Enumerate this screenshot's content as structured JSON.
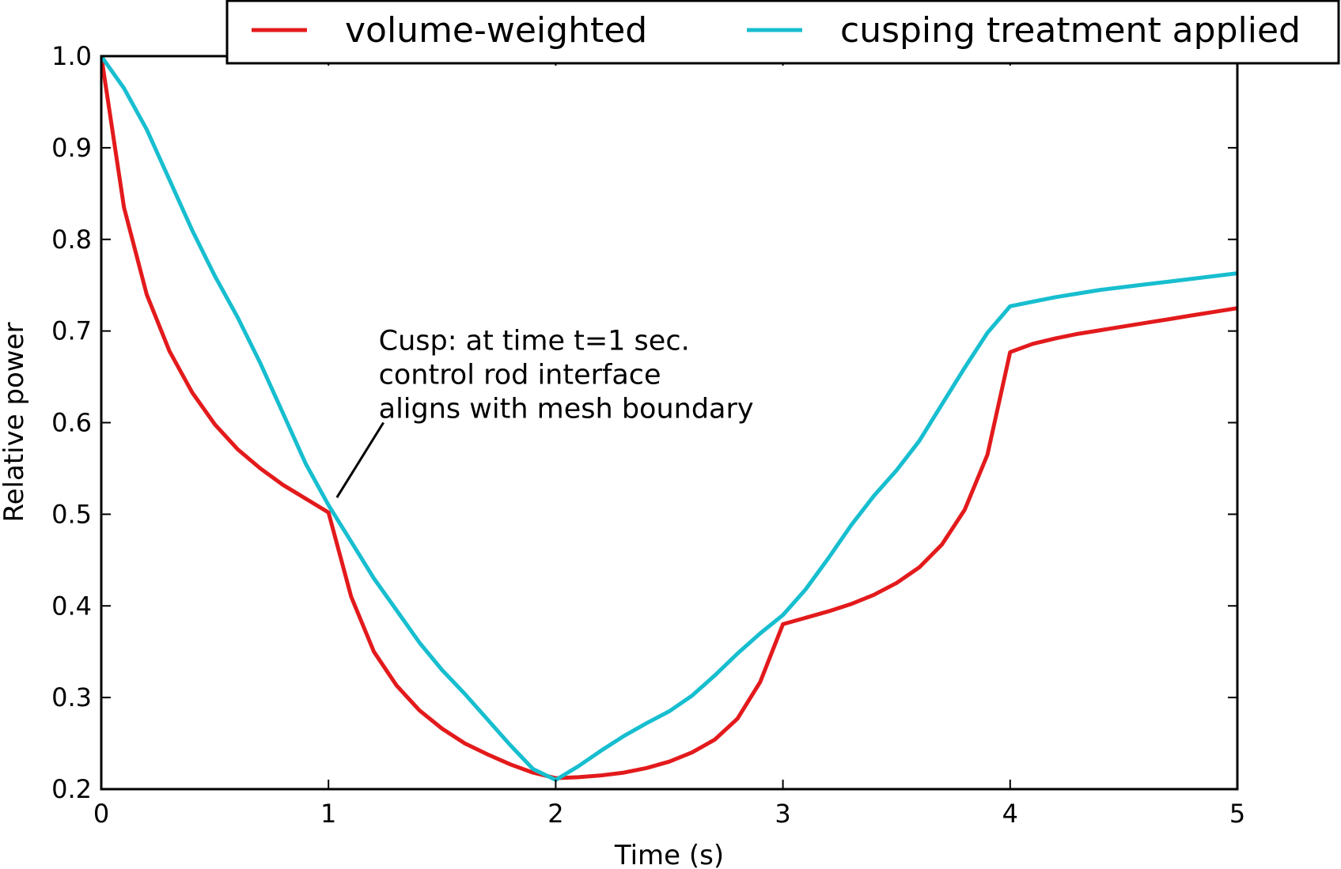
{
  "chart_data": {
    "type": "line",
    "xlabel": "Time (s)",
    "ylabel": "Relative power",
    "xlim": [
      0,
      5
    ],
    "ylim": [
      0.2,
      1.0
    ],
    "xticks": [
      "0",
      "1",
      "2",
      "3",
      "4",
      "5"
    ],
    "yticks": [
      "0.2",
      "0.3",
      "0.4",
      "0.5",
      "0.6",
      "0.7",
      "0.8",
      "0.9",
      "1.0"
    ],
    "grid": false,
    "legend_position": "top-right",
    "series": [
      {
        "name": "volume-weighted",
        "color": "#e31a1c",
        "x": [
          0,
          0.1,
          0.2,
          0.3,
          0.4,
          0.5,
          0.6,
          0.7,
          0.8,
          0.9,
          1.0,
          1.1,
          1.2,
          1.3,
          1.4,
          1.5,
          1.6,
          1.7,
          1.8,
          1.9,
          2.0,
          2.1,
          2.2,
          2.3,
          2.4,
          2.5,
          2.6,
          2.7,
          2.8,
          2.9,
          3.0,
          3.1,
          3.2,
          3.3,
          3.4,
          3.5,
          3.6,
          3.7,
          3.8,
          3.9,
          4.0,
          4.1,
          4.2,
          4.3,
          4.4,
          4.5,
          4.6,
          4.7,
          4.8,
          4.9,
          5.0
        ],
        "y": [
          1.0,
          0.835,
          0.74,
          0.678,
          0.633,
          0.598,
          0.571,
          0.55,
          0.532,
          0.517,
          0.502,
          0.41,
          0.35,
          0.313,
          0.286,
          0.266,
          0.25,
          0.238,
          0.227,
          0.218,
          0.212,
          0.213,
          0.215,
          0.218,
          0.223,
          0.23,
          0.24,
          0.254,
          0.277,
          0.317,
          0.38,
          0.387,
          0.394,
          0.402,
          0.412,
          0.425,
          0.442,
          0.467,
          0.505,
          0.565,
          0.677,
          0.686,
          0.692,
          0.697,
          0.701,
          0.705,
          0.709,
          0.713,
          0.717,
          0.721,
          0.725
        ]
      },
      {
        "name": "cusping treatment applied",
        "color": "#17becf",
        "x": [
          0,
          0.1,
          0.2,
          0.3,
          0.4,
          0.5,
          0.6,
          0.7,
          0.8,
          0.9,
          1.0,
          1.1,
          1.2,
          1.3,
          1.4,
          1.5,
          1.6,
          1.7,
          1.8,
          1.9,
          2.0,
          2.1,
          2.2,
          2.3,
          2.4,
          2.5,
          2.6,
          2.7,
          2.8,
          2.9,
          3.0,
          3.1,
          3.2,
          3.3,
          3.4,
          3.5,
          3.6,
          3.7,
          3.8,
          3.9,
          4.0,
          4.1,
          4.2,
          4.3,
          4.4,
          4.5,
          4.6,
          4.7,
          4.8,
          4.9,
          5.0
        ],
        "y": [
          1.0,
          0.965,
          0.92,
          0.865,
          0.81,
          0.76,
          0.715,
          0.665,
          0.61,
          0.555,
          0.51,
          0.47,
          0.43,
          0.395,
          0.36,
          0.33,
          0.304,
          0.276,
          0.248,
          0.222,
          0.21,
          0.225,
          0.242,
          0.258,
          0.272,
          0.285,
          0.302,
          0.324,
          0.348,
          0.37,
          0.39,
          0.418,
          0.452,
          0.488,
          0.52,
          0.548,
          0.58,
          0.62,
          0.66,
          0.698,
          0.727,
          0.732,
          0.737,
          0.741,
          0.745,
          0.748,
          0.751,
          0.754,
          0.757,
          0.76,
          0.763
        ]
      }
    ],
    "annotation": {
      "lines": [
        "Cusp: at time t=1 sec.",
        "control rod interface",
        "aligns with mesh boundary"
      ],
      "point": [
        1.03,
        0.52
      ],
      "text_at": [
        1.2,
        0.6
      ]
    }
  }
}
